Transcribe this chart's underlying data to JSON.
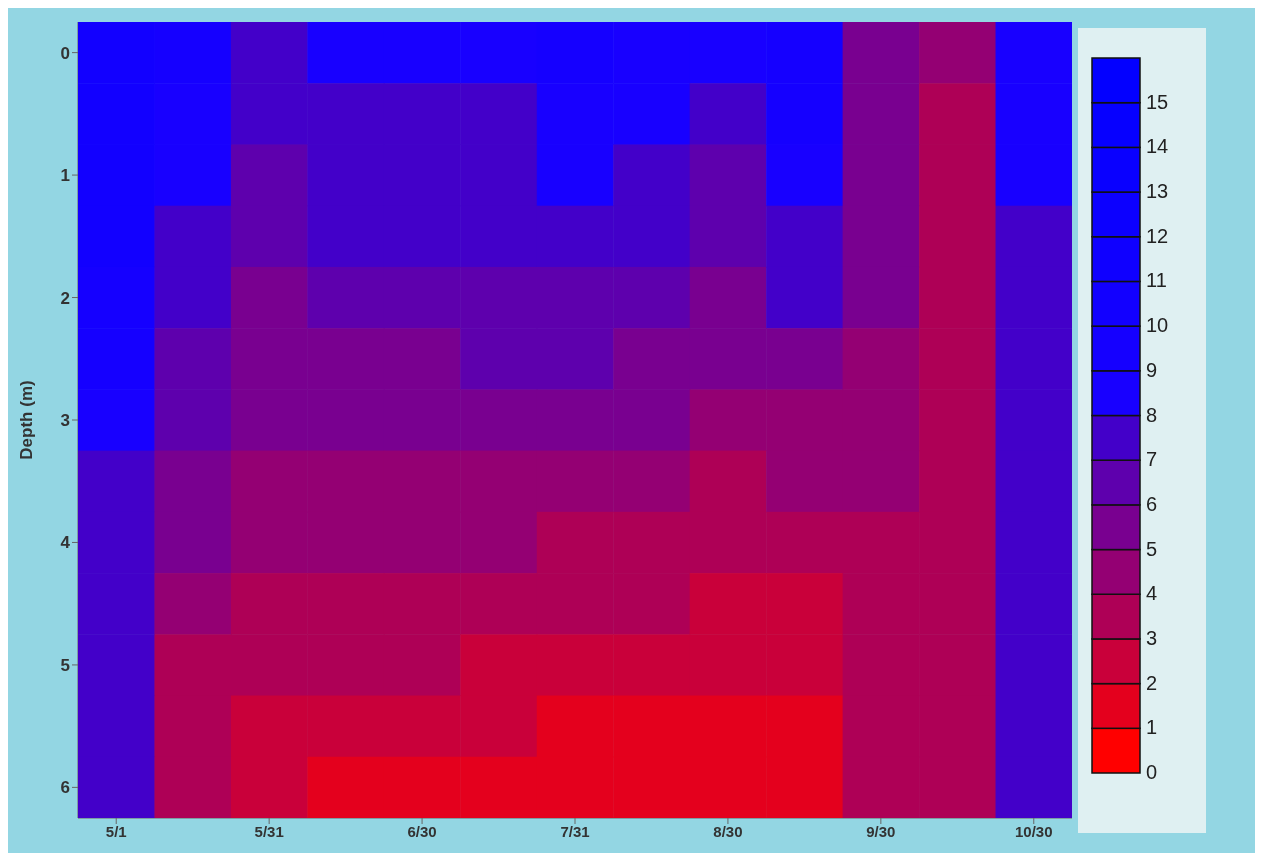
{
  "chart_data": {
    "type": "heatmap",
    "ylabel": "Depth (m)",
    "categories": [
      "5/1",
      null,
      "5/31",
      null,
      "6/30",
      null,
      "7/31",
      null,
      "8/30",
      null,
      "9/30",
      null,
      "10/30"
    ],
    "y_categories": [
      "0",
      null,
      "1",
      null,
      "2",
      null,
      "3",
      null,
      "4",
      null,
      "5",
      null,
      "6"
    ],
    "cells": [
      [
        10,
        9,
        7.5,
        8.6,
        8.3,
        8.5,
        9,
        8.8,
        8.2,
        9.5,
        5.6,
        4.2,
        8
      ],
      [
        10,
        8.6,
        7,
        7.9,
        7.8,
        7.9,
        8.5,
        8.4,
        7.5,
        9,
        5.5,
        3.9,
        8
      ],
      [
        10,
        8.1,
        6.8,
        7.5,
        7.4,
        7.5,
        8,
        7.8,
        6.9,
        8.2,
        5.4,
        3.8,
        8
      ],
      [
        10,
        7.6,
        6.4,
        7,
        7,
        7.1,
        7.5,
        7.1,
        6.4,
        7.4,
        5.2,
        3.7,
        7.9
      ],
      [
        9.5,
        7.2,
        5.9,
        6.5,
        6.4,
        6.5,
        6.9,
        6.5,
        5.8,
        7,
        5,
        3.7,
        7.9
      ],
      [
        9,
        6.8,
        5.5,
        5.9,
        5.9,
        6,
        6.3,
        5.9,
        5.1,
        5.6,
        4.8,
        3.7,
        7.9
      ],
      [
        8,
        6.1,
        5,
        5.2,
        5.3,
        5.4,
        5.6,
        5.2,
        4.5,
        4.8,
        4.6,
        3.7,
        7.9
      ],
      [
        7.8,
        5.5,
        4.7,
        4.6,
        4.8,
        4.8,
        4.9,
        4.3,
        3.8,
        4,
        4.2,
        3.7,
        7.9
      ],
      [
        7.5,
        5,
        4.2,
        4,
        4.2,
        4.2,
        3.9,
        3.7,
        3,
        3.4,
        3.8,
        3.7,
        7.8
      ],
      [
        7.3,
        4.3,
        3.8,
        3.5,
        3.6,
        3.4,
        3.2,
        3,
        2.5,
        2.8,
        3.5,
        3.6,
        7.8
      ],
      [
        7.2,
        3.8,
        3.3,
        3.1,
        3,
        2.7,
        2.5,
        2.4,
        2,
        2.2,
        3.4,
        3.6,
        7.8
      ],
      [
        7.1,
        3.5,
        2.8,
        2.4,
        2.4,
        2.3,
        1.8,
        1.9,
        1.6,
        1.8,
        3.3,
        3.6,
        7.8
      ],
      [
        7,
        3.3,
        2.7,
        1.8,
        1.9,
        1.9,
        1.5,
        1.4,
        1.2,
        1.7,
        3.3,
        3.6,
        7.8
      ]
    ],
    "clim": [
      0,
      16
    ],
    "cticks": [
      0,
      1,
      2,
      3,
      4,
      5,
      6,
      7,
      8,
      9,
      10,
      11,
      12,
      13,
      14,
      15
    ]
  }
}
